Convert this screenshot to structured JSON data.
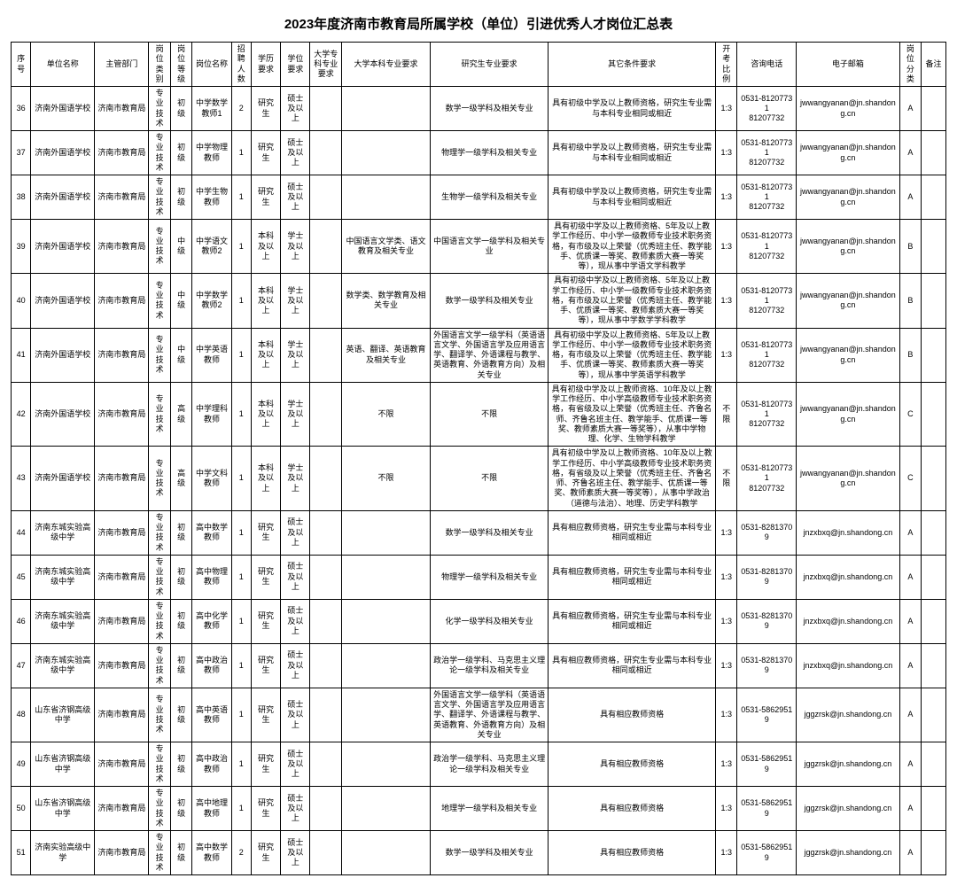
{
  "title": "2023年度济南市教育局所属学校（单位）引进优秀人才岗位汇总表",
  "headers": [
    "序号",
    "单位名称",
    "主管部门",
    "岗位类别",
    "岗位等级",
    "岗位名称",
    "招聘人数",
    "学历要求",
    "学位要求",
    "大学专科专业要求",
    "大学本科专业要求",
    "研究生专业要求",
    "其它条件要求",
    "开考比例",
    "咨询电话",
    "电子邮箱",
    "岗位分类",
    "备注"
  ],
  "rows": [
    {
      "seq": "36",
      "unit": "济南外国语学校",
      "dept": "济南市教育局",
      "cat": "专业技术",
      "grade": "初级",
      "post": "中学数学教师1",
      "num": "2",
      "edu": "研究生",
      "deg": "硕士及以上",
      "s1": "",
      "s2": "",
      "s3": "数学一级学科及相关专业",
      "other": "具有初级中学及以上教师资格，研究生专业需与本科专业相同或相近",
      "ratio": "1:3",
      "phone": "0531-81207731\n81207732",
      "email": "jwwangyanan@jn.shandong.cn",
      "cls": "A",
      "note": ""
    },
    {
      "seq": "37",
      "unit": "济南外国语学校",
      "dept": "济南市教育局",
      "cat": "专业技术",
      "grade": "初级",
      "post": "中学物理教师",
      "num": "1",
      "edu": "研究生",
      "deg": "硕士及以上",
      "s1": "",
      "s2": "",
      "s3": "物理学一级学科及相关专业",
      "other": "具有初级中学及以上教师资格，研究生专业需与本科专业相同或相近",
      "ratio": "1:3",
      "phone": "0531-81207731\n81207732",
      "email": "jwwangyanan@jn.shandong.cn",
      "cls": "A",
      "note": ""
    },
    {
      "seq": "38",
      "unit": "济南外国语学校",
      "dept": "济南市教育局",
      "cat": "专业技术",
      "grade": "初级",
      "post": "中学生物教师",
      "num": "1",
      "edu": "研究生",
      "deg": "硕士及以上",
      "s1": "",
      "s2": "",
      "s3": "生物学一级学科及相关专业",
      "other": "具有初级中学及以上教师资格，研究生专业需与本科专业相同或相近",
      "ratio": "1:3",
      "phone": "0531-81207731\n81207732",
      "email": "jwwangyanan@jn.shandong.cn",
      "cls": "A",
      "note": ""
    },
    {
      "seq": "39",
      "unit": "济南外国语学校",
      "dept": "济南市教育局",
      "cat": "专业技术",
      "grade": "中级",
      "post": "中学语文教师2",
      "num": "1",
      "edu": "本科及以上",
      "deg": "学士及以上",
      "s1": "",
      "s2": "中国语言文学类、语文教育及相关专业",
      "s3": "中国语言文学一级学科及相关专业",
      "other": "具有初级中学及以上教师资格、5年及以上教学工作经历、中小学一级教师专业技术职务资格，有市级及以上荣誉（优秀班主任、教学能手、优质课一等奖、教师素质大赛一等奖等），现从事中学语文学科教学",
      "ratio": "1:3",
      "phone": "0531-81207731\n81207732",
      "email": "jwwangyanan@jn.shandong.cn",
      "cls": "B",
      "note": ""
    },
    {
      "seq": "40",
      "unit": "济南外国语学校",
      "dept": "济南市教育局",
      "cat": "专业技术",
      "grade": "中级",
      "post": "中学数学教师2",
      "num": "1",
      "edu": "本科及以上",
      "deg": "学士及以上",
      "s1": "",
      "s2": "数学类、数学教育及相关专业",
      "s3": "数学一级学科及相关专业",
      "other": "具有初级中学及以上教师资格、5年及以上教学工作经历、中小学一级教师专业技术职务资格，有市级及以上荣誉（优秀班主任、教学能手、优质课一等奖、教师素质大赛一等奖等），现从事中学数学学科教学",
      "ratio": "1:3",
      "phone": "0531-81207731\n81207732",
      "email": "jwwangyanan@jn.shandong.cn",
      "cls": "B",
      "note": ""
    },
    {
      "seq": "41",
      "unit": "济南外国语学校",
      "dept": "济南市教育局",
      "cat": "专业技术",
      "grade": "中级",
      "post": "中学英语教师",
      "num": "1",
      "edu": "本科及以上",
      "deg": "学士及以上",
      "s1": "",
      "s2": "英语、翻译、英语教育及相关专业",
      "s3": "外国语言文学一级学科（英语语言文学、外国语言学及应用语言学、翻译学、外语课程与教学、英语教育、外语教育方向）及相关专业",
      "other": "具有初级中学及以上教师资格、5年及以上教学工作经历、中小学一级教师专业技术职务资格，有市级及以上荣誉（优秀班主任、教学能手、优质课一等奖、教师素质大赛一等奖等），现从事中学英语学科教学",
      "ratio": "1:3",
      "phone": "0531-81207731\n81207732",
      "email": "jwwangyanan@jn.shandong.cn",
      "cls": "B",
      "note": ""
    },
    {
      "seq": "42",
      "unit": "济南外国语学校",
      "dept": "济南市教育局",
      "cat": "专业技术",
      "grade": "高级",
      "post": "中学理科教师",
      "num": "1",
      "edu": "本科及以上",
      "deg": "学士及以上",
      "s1": "",
      "s2": "不限",
      "s3": "不限",
      "other": "具有初级中学及以上教师资格、10年及以上教学工作经历、中小学高级教师专业技术职务资格，有省级及以上荣誉（优秀班主任、齐鲁名师、齐鲁名班主任、教学能手、优质课一等奖、教师素质大赛一等奖等），从事中学物理、化学、生物学科教学",
      "ratio": "不限",
      "phone": "0531-81207731\n81207732",
      "email": "jwwangyanan@jn.shandong.cn",
      "cls": "C",
      "note": ""
    },
    {
      "seq": "43",
      "unit": "济南外国语学校",
      "dept": "济南市教育局",
      "cat": "专业技术",
      "grade": "高级",
      "post": "中学文科教师",
      "num": "1",
      "edu": "本科及以上",
      "deg": "学士及以上",
      "s1": "",
      "s2": "不限",
      "s3": "不限",
      "other": "具有初级中学及以上教师资格、10年及以上教学工作经历、中小学高级教师专业技术职务资格，有省级及以上荣誉（优秀班主任、齐鲁名师、齐鲁名班主任、教学能手、优质课一等奖、教师素质大赛一等奖等），从事中学政治（道德与法治）、地理、历史学科教学",
      "ratio": "不限",
      "phone": "0531-81207731\n81207732",
      "email": "jwwangyanan@jn.shandong.cn",
      "cls": "C",
      "note": ""
    },
    {
      "seq": "44",
      "unit": "济南东城实验高级中学",
      "dept": "济南市教育局",
      "cat": "专业技术",
      "grade": "初级",
      "post": "高中数学教师",
      "num": "1",
      "edu": "研究生",
      "deg": "硕士及以上",
      "s1": "",
      "s2": "",
      "s3": "数学一级学科及相关专业",
      "other": "具有相应教师资格，研究生专业需与本科专业相同或相近",
      "ratio": "1:3",
      "phone": "0531-82813709",
      "email": "jnzxbxq@jn.shandong.cn",
      "cls": "A",
      "note": ""
    },
    {
      "seq": "45",
      "unit": "济南东城实验高级中学",
      "dept": "济南市教育局",
      "cat": "专业技术",
      "grade": "初级",
      "post": "高中物理教师",
      "num": "1",
      "edu": "研究生",
      "deg": "硕士及以上",
      "s1": "",
      "s2": "",
      "s3": "物理学一级学科及相关专业",
      "other": "具有相应教师资格，研究生专业需与本科专业相同或相近",
      "ratio": "1:3",
      "phone": "0531-82813709",
      "email": "jnzxbxq@jn.shandong.cn",
      "cls": "A",
      "note": ""
    },
    {
      "seq": "46",
      "unit": "济南东城实验高级中学",
      "dept": "济南市教育局",
      "cat": "专业技术",
      "grade": "初级",
      "post": "高中化学教师",
      "num": "1",
      "edu": "研究生",
      "deg": "硕士及以上",
      "s1": "",
      "s2": "",
      "s3": "化学一级学科及相关专业",
      "other": "具有相应教师资格，研究生专业需与本科专业相同或相近",
      "ratio": "1:3",
      "phone": "0531-82813709",
      "email": "jnzxbxq@jn.shandong.cn",
      "cls": "A",
      "note": ""
    },
    {
      "seq": "47",
      "unit": "济南东城实验高级中学",
      "dept": "济南市教育局",
      "cat": "专业技术",
      "grade": "初级",
      "post": "高中政治教师",
      "num": "1",
      "edu": "研究生",
      "deg": "硕士及以上",
      "s1": "",
      "s2": "",
      "s3": "政治学一级学科、马克思主义理论一级学科及相关专业",
      "other": "具有相应教师资格，研究生专业需与本科专业相同或相近",
      "ratio": "1:3",
      "phone": "0531-82813709",
      "email": "jnzxbxq@jn.shandong.cn",
      "cls": "A",
      "note": ""
    },
    {
      "seq": "48",
      "unit": "山东省济钢高级中学",
      "dept": "济南市教育局",
      "cat": "专业技术",
      "grade": "初级",
      "post": "高中英语教师",
      "num": "1",
      "edu": "研究生",
      "deg": "硕士及以上",
      "s1": "",
      "s2": "",
      "s3": "外国语言文学一级学科（英语语言文学、外国语言学及应用语言学、翻译学、外语课程与教学、英语教育、外语教育方向）及相关专业",
      "other": "具有相应教师资格",
      "ratio": "1:3",
      "phone": "0531-58629519",
      "email": "jggzrsk@jn.shandong.cn",
      "cls": "A",
      "note": ""
    },
    {
      "seq": "49",
      "unit": "山东省济钢高级中学",
      "dept": "济南市教育局",
      "cat": "专业技术",
      "grade": "初级",
      "post": "高中政治教师",
      "num": "1",
      "edu": "研究生",
      "deg": "硕士及以上",
      "s1": "",
      "s2": "",
      "s3": "政治学一级学科、马克思主义理论一级学科及相关专业",
      "other": "具有相应教师资格",
      "ratio": "1:3",
      "phone": "0531-58629519",
      "email": "jggzrsk@jn.shandong.cn",
      "cls": "A",
      "note": ""
    },
    {
      "seq": "50",
      "unit": "山东省济钢高级中学",
      "dept": "济南市教育局",
      "cat": "专业技术",
      "grade": "初级",
      "post": "高中地理教师",
      "num": "1",
      "edu": "研究生",
      "deg": "硕士及以上",
      "s1": "",
      "s2": "",
      "s3": "地理学一级学科及相关专业",
      "other": "具有相应教师资格",
      "ratio": "1:3",
      "phone": "0531-58629519",
      "email": "jggzrsk@jn.shandong.cn",
      "cls": "A",
      "note": ""
    },
    {
      "seq": "51",
      "unit": "济南实验高级中学",
      "dept": "济南市教育局",
      "cat": "专业技术",
      "grade": "初级",
      "post": "高中数学教师",
      "num": "2",
      "edu": "研究生",
      "deg": "硕士及以上",
      "s1": "",
      "s2": "",
      "s3": "数学一级学科及相关专业",
      "other": "具有相应教师资格",
      "ratio": "1:3",
      "phone": "0531-58629519",
      "email": "jggzrsk@jn.shandong.cn",
      "cls": "A",
      "note": ""
    }
  ]
}
